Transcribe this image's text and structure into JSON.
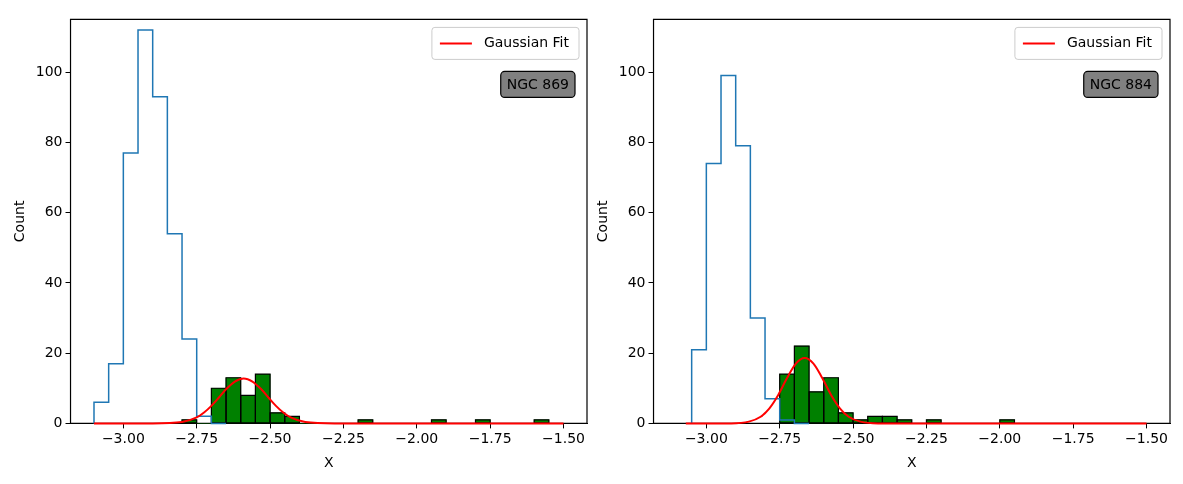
{
  "chart_data": [
    {
      "type": "histogram",
      "xlabel": "X",
      "ylabel": "Count",
      "annotations": [
        "NGC 869"
      ],
      "legend": "top right",
      "grid": false,
      "xlim": [
        -3.18,
        -1.42
      ],
      "ylim": [
        0,
        115
      ],
      "xticks": [
        {
          "value": -3,
          "label": "−3.00"
        },
        {
          "value": -2.75,
          "label": "−2.75"
        },
        {
          "value": -2.5,
          "label": "−2.50"
        },
        {
          "value": -2.25,
          "label": "−2.25"
        },
        {
          "value": -2,
          "label": "−2.00"
        },
        {
          "value": -1.75,
          "label": "−1.75"
        },
        {
          "value": -1.5,
          "label": "−1.50"
        }
      ],
      "yticks": [
        0,
        20,
        40,
        60,
        80,
        100
      ],
      "series": [
        {
          "type": "step",
          "color": "#1f77b4",
          "x": [
            -3.1,
            -3.1,
            -3.05,
            -3.0,
            -2.95,
            -2.9,
            -2.85,
            -2.8,
            -2.75,
            -2.7,
            -2.65
          ],
          "values": [
            0,
            1,
            6,
            17,
            77,
            112,
            93,
            54,
            24,
            2,
            0
          ]
        },
        {
          "color": "#008000",
          "bins": [
            -2.8,
            -2.75,
            -2.7,
            -2.65,
            -2.6,
            -2.55,
            -2.5,
            -2.45,
            -2.4,
            -2.35,
            -2.3,
            -2.25,
            -2.2,
            -2.15,
            -2.1,
            -2.05,
            -2.0,
            -1.95,
            -1.9,
            -1.85,
            -1.8,
            -1.75,
            -1.7,
            -1.65,
            -1.6,
            -1.55
          ],
          "values": [
            1,
            0,
            10,
            13,
            8,
            14,
            3,
            2,
            0,
            0,
            0,
            0,
            1,
            0,
            0,
            0,
            0,
            1,
            0,
            0,
            1,
            0,
            0,
            0,
            1
          ]
        },
        {
          "type": "line",
          "name": "Gaussian Fit",
          "color": "#ff0000",
          "x": [
            -3.1,
            -2.9,
            -2.8,
            -2.75,
            -2.725,
            -2.7,
            -2.675,
            -2.65,
            -2.62,
            -2.59,
            -2.56,
            -2.53,
            -2.505,
            -2.48,
            -2.455,
            -2.43,
            -2.38,
            -2.28,
            -1.5
          ],
          "values": [
            0,
            0,
            0.4,
            1.7,
            3.1,
            5.0,
            7.3,
            9.7,
            11.9,
            12.8,
            11.9,
            9.7,
            7.3,
            5.0,
            3.1,
            1.7,
            0.4,
            0,
            0
          ]
        }
      ]
    },
    {
      "type": "histogram",
      "xlabel": "X",
      "ylabel": "Count",
      "annotations": [
        "NGC 884"
      ],
      "legend": "top right",
      "grid": false,
      "xlim": [
        -3.18,
        -1.42
      ],
      "ylim": [
        0,
        115
      ],
      "xticks": [
        {
          "value": -3,
          "label": "−3.00"
        },
        {
          "value": -2.75,
          "label": "−2.75"
        },
        {
          "value": -2.5,
          "label": "−2.50"
        },
        {
          "value": -2.25,
          "label": "−2.25"
        },
        {
          "value": -2,
          "label": "−2.00"
        },
        {
          "value": -1.75,
          "label": "−1.75"
        },
        {
          "value": -1.5,
          "label": "−1.50"
        }
      ],
      "yticks": [
        0,
        20,
        40,
        60,
        80,
        100
      ],
      "series": [
        {
          "type": "step",
          "color": "#1f77b4",
          "x": [
            -3.05,
            -3.05,
            -3.0,
            -2.95,
            -2.9,
            -2.85,
            -2.8,
            -2.75,
            -2.7,
            -2.65
          ],
          "values": [
            0,
            1,
            21,
            74,
            99,
            79,
            30,
            7,
            1,
            0
          ]
        },
        {
          "color": "#008000",
          "bins": [
            -2.75,
            -2.7,
            -2.65,
            -2.6,
            -2.55,
            -2.5,
            -2.45,
            -2.4,
            -2.35,
            -2.3,
            -2.25,
            -2.2,
            -2.15,
            -2.1,
            -2.05,
            -2.0,
            -1.95
          ],
          "values": [
            14,
            22,
            9,
            13,
            3,
            1,
            2,
            2,
            1,
            0,
            1,
            0,
            0,
            0,
            0,
            1
          ]
        },
        {
          "type": "line",
          "name": "Gaussian Fit",
          "color": "#ff0000",
          "x": [
            -3.07,
            -2.915,
            -2.855,
            -2.815,
            -2.785,
            -2.755,
            -2.725,
            -2.695,
            -2.665,
            -2.635,
            -2.605,
            -2.575,
            -2.545,
            -2.515,
            -2.475,
            -2.415,
            -1.5
          ],
          "values": [
            0,
            0,
            0.5,
            1.9,
            4.3,
            8.1,
            12.9,
            17.0,
            18.6,
            17.0,
            12.9,
            8.1,
            4.3,
            1.9,
            0.5,
            0,
            0
          ]
        }
      ]
    }
  ]
}
